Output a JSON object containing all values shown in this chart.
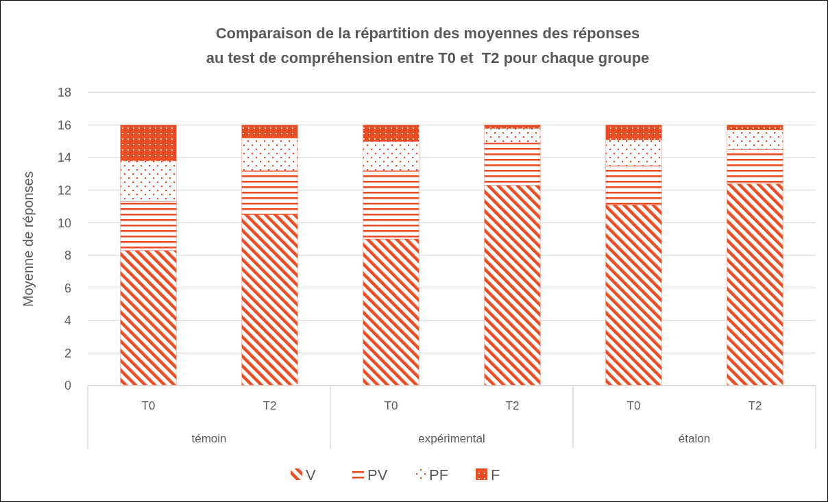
{
  "chart_data": {
    "type": "bar",
    "title": "Comparaison de la répartition des moyennes des réponses\nau test de compréhension entre T0 et  T2 pour chaque groupe",
    "ylabel": "Moyenne de réponses",
    "categories": [
      "T0",
      "T2",
      "T0",
      "T2",
      "T0",
      "T2"
    ],
    "annotations": [
      "témoin",
      "expérimental",
      "étalon"
    ],
    "stacked": true,
    "series": [
      {
        "name": "V",
        "color": "#e84c22",
        "values": [
          8.3,
          10.5,
          9.0,
          12.3,
          11.1,
          12.4
        ]
      },
      {
        "name": "PV",
        "color": "#e84c22",
        "values": [
          3.0,
          2.7,
          4.2,
          2.6,
          2.4,
          2.1
        ]
      },
      {
        "name": "PF",
        "color": "#e84c22",
        "values": [
          2.5,
          2.0,
          1.8,
          0.9,
          1.6,
          1.2
        ]
      },
      {
        "name": "F",
        "color": "#e84c22",
        "values": [
          2.2,
          0.8,
          1.0,
          0.2,
          0.9,
          0.3
        ]
      }
    ],
    "ylim": [
      0,
      18
    ],
    "yticks": [
      0,
      2,
      4,
      6,
      8,
      10,
      12,
      14,
      16,
      18
    ],
    "grid": "y",
    "legend": "bottom"
  }
}
